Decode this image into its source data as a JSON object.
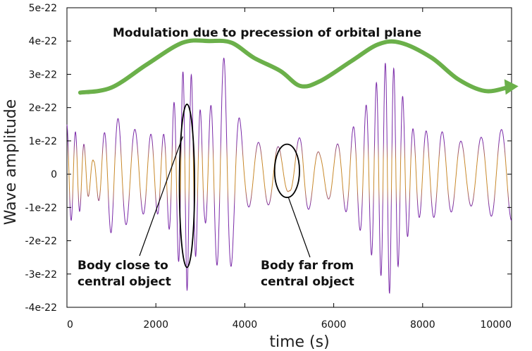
{
  "chart_data": {
    "type": "line",
    "title": "",
    "xlabel": "time (s)",
    "ylabel": "Wave amplitude",
    "xlim": [
      0,
      10000
    ],
    "ylim": [
      -4e-22,
      5e-22
    ],
    "x_ticks": [
      0,
      2000,
      4000,
      6000,
      8000,
      10000
    ],
    "x_tick_labels": [
      "0",
      "2000",
      "4000",
      "6000",
      "8000",
      "10000"
    ],
    "y_ticks": [
      5e-22,
      4e-22,
      3e-22,
      2e-22,
      1e-22,
      0,
      -1e-22,
      -2e-22,
      -3e-22,
      -4e-22
    ],
    "y_tick_labels": [
      "5e-22",
      "4e-22",
      "3e-22",
      "2e-22",
      "1e-22",
      "0",
      "-1e-22",
      "-2e-22",
      "-3e-22",
      "-4e-22"
    ],
    "grid": false,
    "series": [
      {
        "color": "#7a2aa8",
        "note_color_mid": "#c8892a",
        "oscillation": {
          "period_far_s": 460,
          "period_close_s": 190,
          "periapsis_times_s": [
            230,
            2700,
            7250
          ],
          "envelope_amplitude": [
            [
              0,
              1.5e-22
            ],
            [
              250,
              1.2e-22
            ],
            [
              600,
              4e-23
            ],
            [
              1000,
              1.8e-22
            ],
            [
              1700,
              1.2e-22
            ],
            [
              2200,
              1.2e-22
            ],
            [
              2700,
              3.5e-22
            ],
            [
              3100,
              1.4e-22
            ],
            [
              3550,
              3.6e-22
            ],
            [
              4000,
              1e-22
            ],
            [
              4700,
              9e-23
            ],
            [
              5000,
              5e-23
            ],
            [
              5300,
              1.3e-22
            ],
            [
              5700,
              6e-23
            ],
            [
              6200,
              1e-22
            ],
            [
              6600,
              1.7e-22
            ],
            [
              7250,
              3.6e-22
            ],
            [
              7800,
              1.3e-22
            ],
            [
              8400,
              1.3e-22
            ],
            [
              9000,
              9e-23
            ],
            [
              9600,
              1.3e-22
            ],
            [
              10000,
              1.4e-22
            ]
          ]
        }
      }
    ],
    "modulation_curve": {
      "color": "#6bb04a",
      "points": [
        [
          300,
          2.45e-22
        ],
        [
          1000,
          2.6e-22
        ],
        [
          1800,
          3.3e-22
        ],
        [
          2600,
          3.95e-22
        ],
        [
          3200,
          4e-22
        ],
        [
          3700,
          3.95e-22
        ],
        [
          4200,
          3.5e-22
        ],
        [
          4800,
          3.1e-22
        ],
        [
          5250,
          2.65e-22
        ],
        [
          5700,
          2.8e-22
        ],
        [
          6400,
          3.4e-22
        ],
        [
          7000,
          3.9e-22
        ],
        [
          7500,
          3.95e-22
        ],
        [
          8200,
          3.5e-22
        ],
        [
          8800,
          2.85e-22
        ],
        [
          9400,
          2.5e-22
        ],
        [
          9900,
          2.6e-22
        ]
      ]
    },
    "annotations": {
      "modulation": "Modulation due to precession of orbital plane",
      "close_line1": "Body close to",
      "close_line2": "central object",
      "far_line1": "Body far from",
      "far_line2": "central object"
    },
    "ellipses": [
      {
        "cx": 2700,
        "cy": -3.5e-23,
        "rx": 170,
        "ry": 2.45e-22
      },
      {
        "cx": 4950,
        "cy": 1e-23,
        "rx": 280,
        "ry": 8e-23
      }
    ]
  }
}
